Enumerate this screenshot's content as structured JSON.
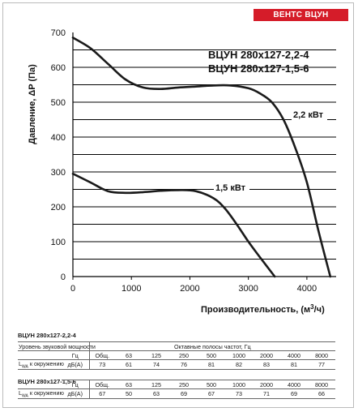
{
  "brand": "ВЕНТС ВЦУН",
  "chart_data": {
    "type": "line",
    "xlabel_main": "Производительность, (м",
    "xlabel_sup": "3",
    "xlabel_end": "/ч)",
    "ylabel": "Давление, ΔP (Па)",
    "xlim": [
      0,
      4500
    ],
    "ylim": [
      0,
      700
    ],
    "x_ticks": [
      0,
      1000,
      2000,
      3000,
      4000
    ],
    "y_ticks": [
      0,
      100,
      200,
      300,
      400,
      500,
      600,
      700
    ],
    "grid": "horizontal",
    "legend": [
      "ВЦУН 280x127-2,2-4",
      "ВЦУН 280x127-1,5-6"
    ],
    "series": [
      {
        "name": "2,2 кВт",
        "x": [
          0,
          300,
          600,
          900,
          1200,
          1500,
          1800,
          2100,
          2400,
          2700,
          3000,
          3200,
          3400,
          3600,
          3800,
          4000,
          4200,
          4400
        ],
        "y": [
          685,
          655,
          610,
          565,
          542,
          538,
          542,
          545,
          548,
          548,
          540,
          525,
          500,
          450,
          370,
          270,
          130,
          0
        ]
      },
      {
        "name": "1,5 кВт",
        "x": [
          0,
          300,
          600,
          900,
          1200,
          1500,
          1800,
          2100,
          2400,
          2600,
          2800,
          3000,
          3200,
          3450
        ],
        "y": [
          295,
          270,
          245,
          240,
          242,
          246,
          248,
          245,
          225,
          195,
          150,
          100,
          55,
          0
        ]
      }
    ]
  },
  "tables": [
    {
      "title": "ВЦУН 280x127-2,2-4",
      "header_label": "Уровень звуковой мощности",
      "header_caption": "Октавные полосы частот, Гц",
      "freq_unit": "Гц",
      "freqs": [
        "Общ.",
        "63",
        "125",
        "250",
        "500",
        "1000",
        "2000",
        "4000",
        "8000"
      ],
      "row_label_main": "L",
      "row_label_sub": "WA",
      "row_label_end": " к окружению",
      "row_unit": "дБ(А)",
      "values": [
        "73",
        "61",
        "74",
        "76",
        "81",
        "82",
        "83",
        "81",
        "77"
      ]
    },
    {
      "title": "ВЦУН 280x127-1,5-6",
      "freq_unit": "Гц",
      "freqs": [
        "Общ.",
        "63",
        "125",
        "250",
        "500",
        "1000",
        "2000",
        "4000",
        "8000"
      ],
      "row_label_main": "L",
      "row_label_sub": "WA",
      "row_label_end": " к окружению",
      "row_unit": "дБ(А)",
      "values": [
        "67",
        "50",
        "63",
        "69",
        "67",
        "73",
        "71",
        "69",
        "66"
      ]
    }
  ]
}
